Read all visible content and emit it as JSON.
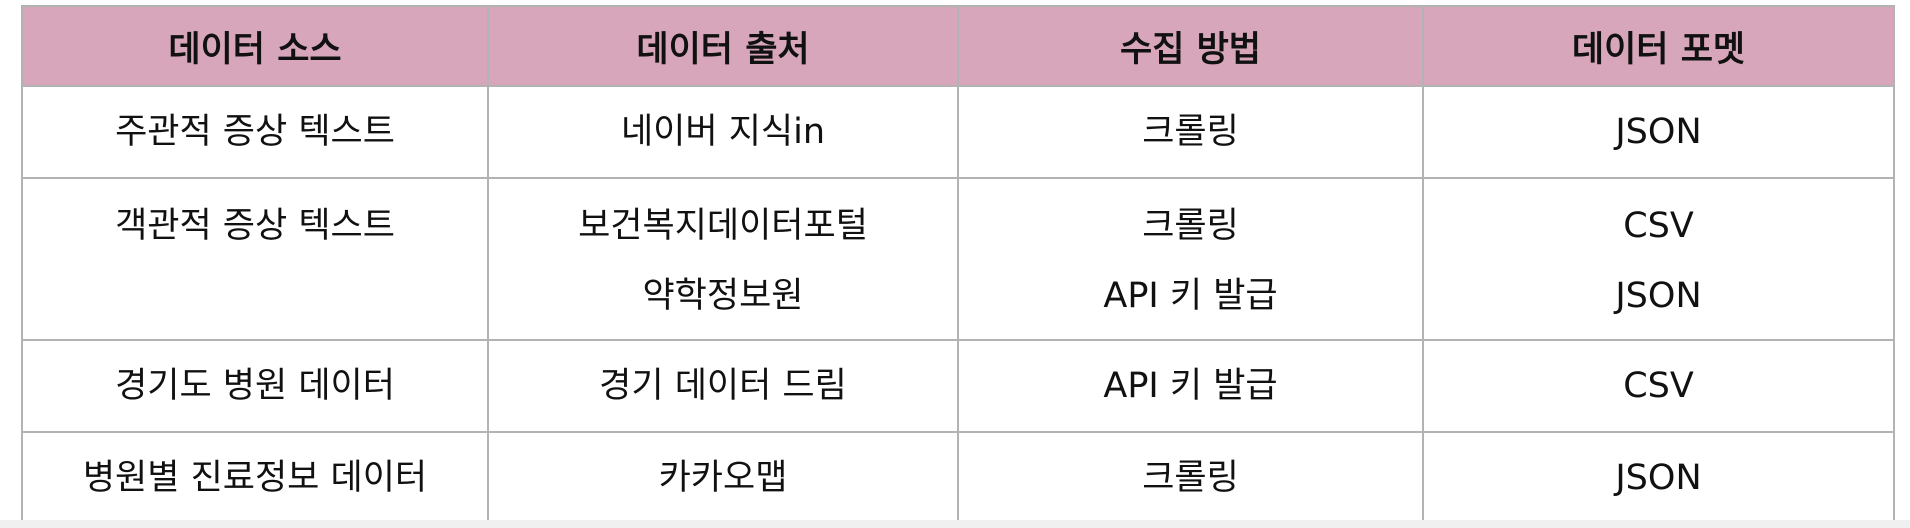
{
  "table": {
    "headers": [
      "데이터 소스",
      "데이터 출처",
      "수집 방법",
      "데이터 포멧"
    ],
    "rows": [
      {
        "source": "주관적 증상 텍스트",
        "origin": [
          "네이버 지식in"
        ],
        "method": [
          "크롤링"
        ],
        "format": [
          "JSON"
        ]
      },
      {
        "source": "객관적 증상 텍스트",
        "origin": [
          "보건복지데이터포털",
          "약학정보원"
        ],
        "method": [
          "크롤링",
          "API 키 발급"
        ],
        "format": [
          "CSV",
          "JSON"
        ]
      },
      {
        "source": "경기도 병원 데이터",
        "origin": [
          "경기 데이터 드림"
        ],
        "method": [
          "API 키 발급"
        ],
        "format": [
          "CSV"
        ]
      },
      {
        "source": "병원별 진료정보 데이터",
        "origin": [
          "카카오맵"
        ],
        "method": [
          "크롤링"
        ],
        "format": [
          "JSON"
        ]
      }
    ]
  },
  "colors": {
    "header_background": "#d7a6ba",
    "border": "#b3b3b3"
  }
}
